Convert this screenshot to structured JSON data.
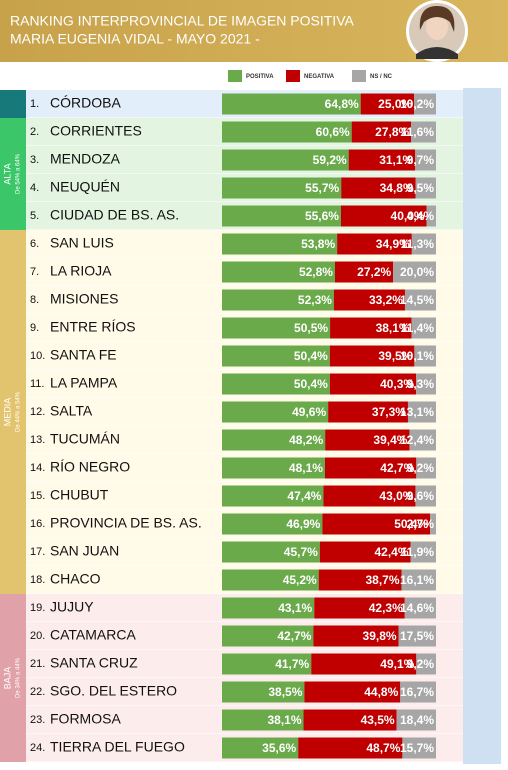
{
  "chart_data": {
    "type": "stacked-bar-horizontal",
    "title": "RANKING INTERPROVINCIAL DE IMAGEN POSITIVA",
    "subtitle": "MARIA EUGENIA VIDAL  - MAYO 2021 -",
    "ranks": [
      "1.",
      "2.",
      "3.",
      "4.",
      "5.",
      "6.",
      "7.",
      "8.",
      "9.",
      "10.",
      "11.",
      "12.",
      "13.",
      "14.",
      "15.",
      "16.",
      "17.",
      "18.",
      "19.",
      "20.",
      "21.",
      "22.",
      "23.",
      "24."
    ],
    "categories": [
      "CÓRDOBA",
      "CORRIENTES",
      "MENDOZA",
      "NEUQUÉN",
      "CIUDAD DE BS. AS.",
      "SAN LUIS",
      "LA RIOJA",
      "MISIONES",
      "ENTRE RÍOS",
      "SANTA FE",
      "LA PAMPA",
      "SALTA",
      "TUCUMÁN",
      "RÍO NEGRO",
      "CHUBUT",
      "PROVINCIA DE BS. AS.",
      "SAN JUAN",
      "CHACO",
      "JUJUY",
      "CATAMARCA",
      "SANTA CRUZ",
      "SGO. DEL ESTERO",
      "FORMOSA",
      "TIERRA DEL FUEGO"
    ],
    "series": [
      {
        "name": "POSITIVA",
        "color": "#6aaa4a",
        "values": [
          64.8,
          60.6,
          59.2,
          55.7,
          55.6,
          53.8,
          52.8,
          52.3,
          50.5,
          50.4,
          50.4,
          49.6,
          48.2,
          48.1,
          47.4,
          46.9,
          45.7,
          45.2,
          43.1,
          42.7,
          41.7,
          38.5,
          38.1,
          35.6
        ],
        "value_labels": [
          "64,8%",
          "60,6%",
          "59,2%",
          "55,7%",
          "55,6%",
          "53,8%",
          "52,8%",
          "52,3%",
          "50,5%",
          "50,4%",
          "50,4%",
          "49,6%",
          "48,2%",
          "48,1%",
          "47,4%",
          "46,9%",
          "45,7%",
          "45,2%",
          "43,1%",
          "42,7%",
          "41,7%",
          "38,5%",
          "38,1%",
          "35,6%"
        ]
      },
      {
        "name": "NEGATIVA",
        "color": "#c00000",
        "values": [
          25.0,
          27.8,
          31.1,
          34.8,
          40.0,
          34.9,
          27.2,
          33.2,
          38.1,
          39.5,
          40.3,
          37.3,
          39.4,
          42.7,
          43.0,
          50.4,
          42.4,
          38.7,
          42.3,
          39.8,
          49.1,
          44.8,
          43.5,
          48.7
        ],
        "value_labels": [
          "25,0%",
          "27,8%",
          "31,1%",
          "34,8%",
          "40,0%",
          "34,9%",
          "27,2%",
          "33,2%",
          "38,1%",
          "39,5%",
          "40,3%",
          "37,3%",
          "39,4%",
          "42,7%",
          "43,0%",
          "50,4%",
          "42,4%",
          "38,7%",
          "42,3%",
          "39,8%",
          "49,1%",
          "44,8%",
          "43,5%",
          "48,7%"
        ]
      },
      {
        "name": "NS / NC",
        "color": "#a6a6a6",
        "values": [
          10.2,
          11.6,
          9.7,
          9.5,
          4.4,
          11.3,
          20.0,
          14.5,
          11.4,
          10.1,
          9.3,
          13.1,
          12.4,
          9.2,
          9.6,
          2.7,
          11.9,
          16.1,
          14.6,
          17.5,
          9.2,
          16.7,
          18.4,
          15.7
        ],
        "value_labels": [
          "10,2%",
          "11,6%",
          "9,7%",
          "9,5%",
          "4,4%",
          "11,3%",
          "20,0%",
          "14,5%",
          "11,4%",
          "10,1%",
          "9,3%",
          "13,1%",
          "12,4%",
          "9,2%",
          "9,6%",
          "2,7%",
          "11,9%",
          "16,1%",
          "14,6%",
          "17,5%",
          "9,2%",
          "16,7%",
          "18,4%",
          "15,7%"
        ]
      }
    ],
    "groups": [
      {
        "label": "ALTA",
        "range_label": "De 54% a 64%",
        "min": 54,
        "max": 64,
        "color": "#3cc66a",
        "background": "#e3f5e0"
      },
      {
        "label": "MEDIA",
        "range_label": "De 44% a 54%",
        "min": 44,
        "max": 54,
        "color": "#e3c46e",
        "background": "#fffbe8"
      },
      {
        "label": "BAJA",
        "range_label": "De 34% a 44%",
        "min": 34,
        "max": 44,
        "color": "#e0a2a8",
        "background": "#fdecec"
      }
    ],
    "ungrouped_color": "#17797a",
    "ungrouped_background": "#e2effb"
  }
}
